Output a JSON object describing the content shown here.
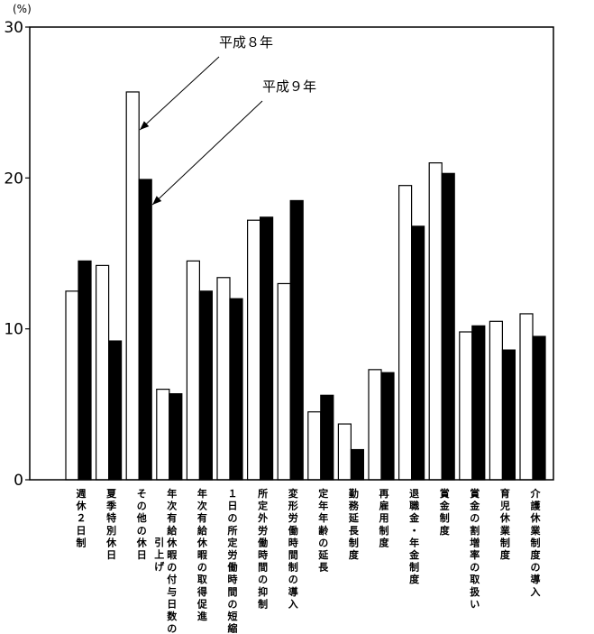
{
  "chart_data": {
    "type": "bar",
    "y_unit": "(%)",
    "ylim": [
      0,
      30
    ],
    "yticks": [
      0,
      10,
      20,
      30
    ],
    "grid": false,
    "legend": "annotations",
    "categories": [
      [
        "週休２日制"
      ],
      [
        "夏季特別休日"
      ],
      [
        "その他の休日"
      ],
      [
        "年次有給休暇の付与日数の",
        "引上げ"
      ],
      [
        "年次有給休暇の取得促進"
      ],
      [
        "１日の所定労働時間の短縮"
      ],
      [
        "所定外労働時間の抑制"
      ],
      [
        "変形労働時間制の導入"
      ],
      [
        "定年年齢の延長"
      ],
      [
        "勤務延長制度"
      ],
      [
        "再雇用制度"
      ],
      [
        "退職金・年金制度"
      ],
      [
        "賞金制度"
      ],
      [
        "賞金の割増率の取扱い"
      ],
      [
        "育児休業制度"
      ],
      [
        "介護休業制度の導入"
      ]
    ],
    "series": [
      {
        "name": "平成８年",
        "color": "#ffffff",
        "values": [
          12.5,
          14.2,
          25.7,
          6.0,
          14.5,
          13.4,
          17.2,
          13.0,
          4.5,
          3.7,
          7.3,
          19.5,
          21.0,
          9.8,
          10.5,
          11.0
        ]
      },
      {
        "name": "平成９年",
        "color": "#000000",
        "values": [
          14.5,
          9.2,
          19.9,
          5.7,
          12.5,
          12.0,
          17.4,
          18.5,
          5.6,
          2.0,
          7.1,
          16.8,
          20.3,
          10.2,
          8.6,
          9.5
        ]
      }
    ]
  }
}
